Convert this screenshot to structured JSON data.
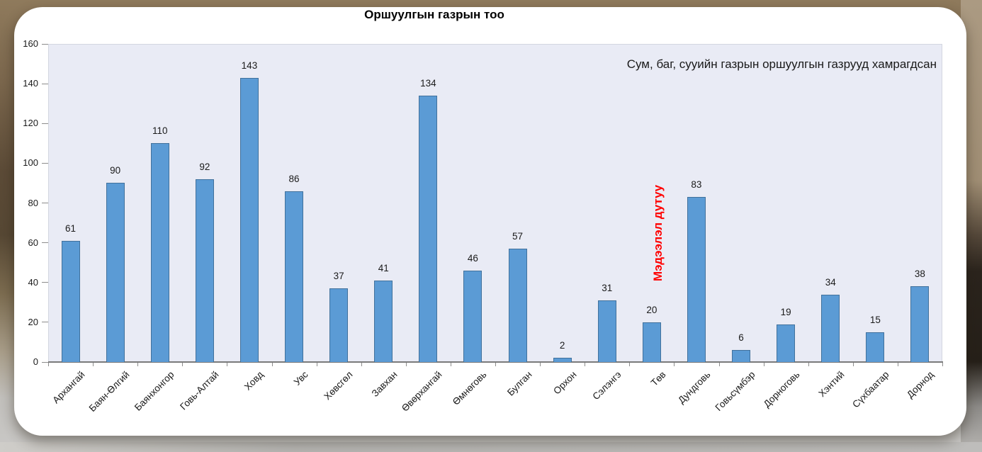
{
  "chart_data": {
    "type": "bar",
    "title": "Оршуулгын газрын тоо",
    "annotation": "Сум, баг, сууийн газрын оршуулгын газрууд хамрагдсан",
    "red_note": {
      "text": "Мэдээлэл дутуу",
      "color": "#FF0000",
      "category": "Төв"
    },
    "categories": [
      "Архангай",
      "Баян-Өлгий",
      "Баянхонгор",
      "Говь-Алтай",
      "Ховд",
      "Увс",
      "Хөвсгөл",
      "Завхан",
      "Өвөрхангай",
      "Өмнөговь",
      "Булган",
      "Орхон",
      "Сэлэнгэ",
      "Төв",
      "Дундговь",
      "Говьсүмбэр",
      "Дорноговь",
      "Хэнтий",
      "Сүхбаатар",
      "Дорнод"
    ],
    "values": [
      61,
      90,
      110,
      92,
      143,
      86,
      37,
      41,
      134,
      46,
      57,
      2,
      31,
      20,
      83,
      6,
      19,
      34,
      15,
      38
    ],
    "ylim": [
      0,
      160
    ],
    "yticks": [
      0,
      20,
      40,
      60,
      80,
      100,
      120,
      140,
      160
    ],
    "grid": false,
    "legend": "none",
    "xlabel": "",
    "ylabel": "",
    "bar_color": "#5B9BD5",
    "bar_border_color": "#41719C",
    "plot_bg": "#E9EBF5"
  }
}
